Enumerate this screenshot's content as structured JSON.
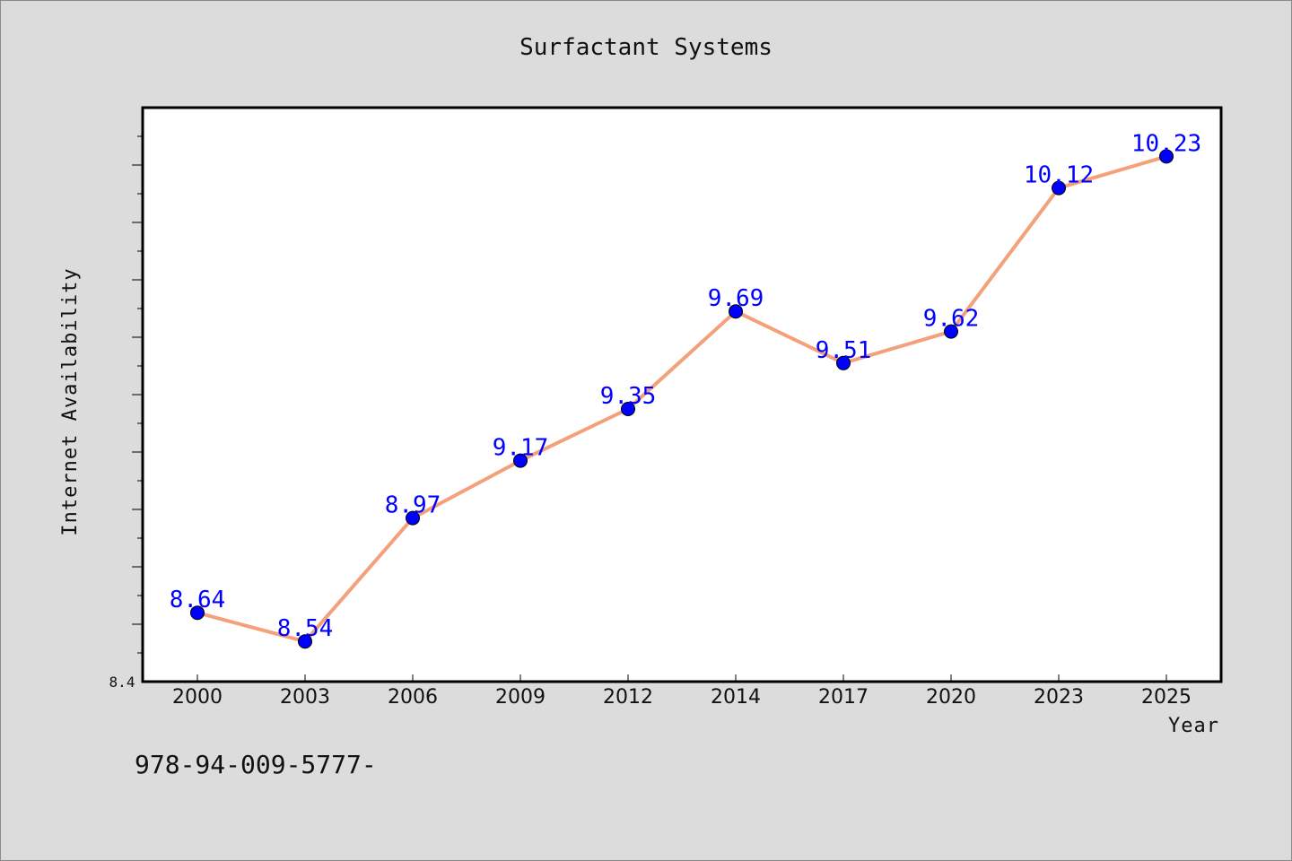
{
  "chart_data": {
    "type": "line",
    "title": "Surfactant Systems",
    "xlabel": "Year",
    "ylabel": "Internet Availability",
    "categories": [
      "2000",
      "2003",
      "2006",
      "2009",
      "2012",
      "2014",
      "2017",
      "2020",
      "2023",
      "2025"
    ],
    "series": [
      {
        "values": [
          8.64,
          8.54,
          8.97,
          9.17,
          9.35,
          9.69,
          9.51,
          9.62,
          10.12,
          10.23
        ]
      }
    ],
    "y_tick_labels": [
      "8.4"
    ],
    "ylim": [
      8.4,
      10.4
    ],
    "grid": false,
    "line_color": "#f4a07a",
    "marker_color": "#0000ff",
    "label_color": "#0000ff"
  },
  "footnote": "978-94-009-5777-"
}
